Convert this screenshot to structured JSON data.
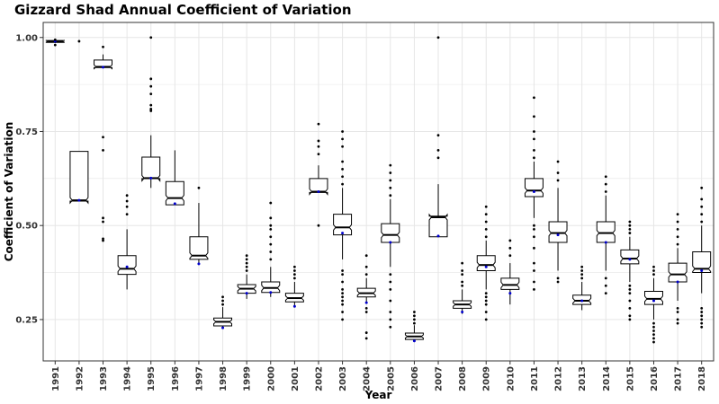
{
  "chart_data": {
    "type": "boxplot",
    "title": "Gizzard Shad Annual Coefficient of Variation",
    "xlabel": "Year",
    "ylabel": "Coefficient of Variation",
    "ylim": [
      0.14,
      1.04
    ],
    "yticks": [
      0.25,
      0.5,
      0.75,
      1.0
    ],
    "ytick_labels": [
      "0.25",
      "0.50",
      "0.75",
      "1.00"
    ],
    "grid": true,
    "colors": {
      "box": "#000000",
      "median": "#000000",
      "mean": "#0000cc",
      "grid": "#e6e6e6",
      "panel_border": "#333333"
    },
    "categories": [
      "1991",
      "1992",
      "1993",
      "1994",
      "1995",
      "1996",
      "1997",
      "1998",
      "1999",
      "2000",
      "2001",
      "2002",
      "2003",
      "2004",
      "2005",
      "2006",
      "2007",
      "2008",
      "2009",
      "2010",
      "2011",
      "2012",
      "2013",
      "2014",
      "2015",
      "2016",
      "2017",
      "2018"
    ],
    "boxes": [
      {
        "year": "1991",
        "q1": 0.987,
        "median": 0.99,
        "q3": 0.992,
        "whislo": 0.985,
        "whishi": 0.993,
        "mean": 0.99,
        "outliers": [
          0.98,
          0.994
        ]
      },
      {
        "year": "1992",
        "q1": 0.565,
        "median": 0.567,
        "q3": 0.697,
        "whislo": 0.565,
        "whishi": 0.697,
        "mean": 0.567,
        "outliers": [
          0.99
        ]
      },
      {
        "year": "1993",
        "q1": 0.92,
        "median": 0.922,
        "q3": 0.94,
        "whislo": 0.92,
        "whishi": 0.955,
        "mean": 0.921,
        "outliers": [
          0.975,
          0.735,
          0.7,
          0.52,
          0.51,
          0.465,
          0.46
        ]
      },
      {
        "year": "1994",
        "q1": 0.37,
        "median": 0.385,
        "q3": 0.42,
        "whislo": 0.33,
        "whishi": 0.49,
        "mean": 0.39,
        "outliers": [
          0.58,
          0.565,
          0.55,
          0.53
        ]
      },
      {
        "year": "1995",
        "q1": 0.625,
        "median": 0.626,
        "q3": 0.682,
        "whislo": 0.6,
        "whishi": 0.74,
        "mean": 0.626,
        "outliers": [
          0.805,
          0.81,
          0.82,
          0.85,
          0.87,
          0.89,
          1.0
        ]
      },
      {
        "year": "1996",
        "q1": 0.555,
        "median": 0.573,
        "q3": 0.617,
        "whislo": 0.555,
        "whishi": 0.7,
        "mean": 0.558,
        "outliers": []
      },
      {
        "year": "1997",
        "q1": 0.41,
        "median": 0.42,
        "q3": 0.47,
        "whislo": 0.395,
        "whishi": 0.56,
        "mean": 0.398,
        "outliers": [
          0.6
        ]
      },
      {
        "year": "1998",
        "q1": 0.233,
        "median": 0.244,
        "q3": 0.254,
        "whislo": 0.225,
        "whishi": 0.283,
        "mean": 0.228,
        "outliers": [
          0.29,
          0.3,
          0.31
        ]
      },
      {
        "year": "1999",
        "q1": 0.32,
        "median": 0.332,
        "q3": 0.343,
        "whislo": 0.305,
        "whishi": 0.37,
        "mean": 0.32,
        "outliers": [
          0.38,
          0.39,
          0.4,
          0.41,
          0.42
        ]
      },
      {
        "year": "2000",
        "q1": 0.322,
        "median": 0.334,
        "q3": 0.35,
        "whislo": 0.31,
        "whishi": 0.39,
        "mean": 0.322,
        "outliers": [
          0.41,
          0.43,
          0.45,
          0.47,
          0.49,
          0.5,
          0.52,
          0.56
        ]
      },
      {
        "year": "2001",
        "q1": 0.297,
        "median": 0.307,
        "q3": 0.32,
        "whislo": 0.285,
        "whishi": 0.35,
        "mean": 0.285,
        "outliers": [
          0.36,
          0.37,
          0.38,
          0.39
        ]
      },
      {
        "year": "2002",
        "q1": 0.588,
        "median": 0.59,
        "q3": 0.625,
        "whislo": 0.588,
        "whishi": 0.66,
        "mean": 0.59,
        "outliers": [
          0.5,
          0.69,
          0.71,
          0.725,
          0.77
        ]
      },
      {
        "year": "2003",
        "q1": 0.475,
        "median": 0.495,
        "q3": 0.53,
        "whislo": 0.41,
        "whishi": 0.6,
        "mean": 0.48,
        "outliers": [
          0.25,
          0.27,
          0.29,
          0.3,
          0.31,
          0.32,
          0.33,
          0.35,
          0.37,
          0.38,
          0.61,
          0.63,
          0.65,
          0.67,
          0.71,
          0.73,
          0.75
        ]
      },
      {
        "year": "2004",
        "q1": 0.31,
        "median": 0.32,
        "q3": 0.333,
        "whislo": 0.295,
        "whishi": 0.36,
        "mean": 0.295,
        "outliers": [
          0.2,
          0.215,
          0.27,
          0.28,
          0.37,
          0.39,
          0.42
        ]
      },
      {
        "year": "2005",
        "q1": 0.455,
        "median": 0.475,
        "q3": 0.505,
        "whislo": 0.39,
        "whishi": 0.57,
        "mean": 0.455,
        "outliers": [
          0.23,
          0.25,
          0.27,
          0.3,
          0.33,
          0.35,
          0.37,
          0.58,
          0.6,
          0.62,
          0.64,
          0.66
        ]
      },
      {
        "year": "2006",
        "q1": 0.197,
        "median": 0.205,
        "q3": 0.214,
        "whislo": 0.19,
        "whishi": 0.235,
        "mean": 0.193,
        "outliers": [
          0.24,
          0.25,
          0.26,
          0.27
        ]
      },
      {
        "year": "2007",
        "q1": 0.47,
        "median": 0.522,
        "q3": 0.525,
        "whislo": 0.47,
        "whishi": 0.61,
        "mean": 0.472,
        "outliers": [
          0.68,
          0.7,
          0.74,
          1.0
        ]
      },
      {
        "year": "2008",
        "q1": 0.28,
        "median": 0.29,
        "q3": 0.3,
        "whislo": 0.265,
        "whishi": 0.33,
        "mean": 0.27,
        "outliers": [
          0.34,
          0.35,
          0.37,
          0.38,
          0.4
        ]
      },
      {
        "year": "2009",
        "q1": 0.38,
        "median": 0.395,
        "q3": 0.42,
        "whislo": 0.33,
        "whishi": 0.46,
        "mean": 0.39,
        "outliers": [
          0.25,
          0.27,
          0.29,
          0.3,
          0.31,
          0.32,
          0.47,
          0.49,
          0.51,
          0.53,
          0.55
        ]
      },
      {
        "year": "2010",
        "q1": 0.33,
        "median": 0.342,
        "q3": 0.36,
        "whislo": 0.29,
        "whishi": 0.4,
        "mean": 0.32,
        "outliers": [
          0.42,
          0.44,
          0.46
        ]
      },
      {
        "year": "2011",
        "q1": 0.577,
        "median": 0.593,
        "q3": 0.625,
        "whislo": 0.52,
        "whishi": 0.67,
        "mean": 0.59,
        "outliers": [
          0.33,
          0.35,
          0.38,
          0.4,
          0.44,
          0.47,
          0.49,
          0.5,
          0.68,
          0.7,
          0.73,
          0.75,
          0.79,
          0.84
        ]
      },
      {
        "year": "2012",
        "q1": 0.455,
        "median": 0.48,
        "q3": 0.51,
        "whislo": 0.38,
        "whishi": 0.6,
        "mean": 0.475,
        "outliers": [
          0.35,
          0.36,
          0.62,
          0.64,
          0.67
        ]
      },
      {
        "year": "2013",
        "q1": 0.29,
        "median": 0.3,
        "q3": 0.315,
        "whislo": 0.275,
        "whishi": 0.35,
        "mean": 0.3,
        "outliers": [
          0.36,
          0.37,
          0.38,
          0.39
        ]
      },
      {
        "year": "2014",
        "q1": 0.455,
        "median": 0.48,
        "q3": 0.51,
        "whislo": 0.38,
        "whishi": 0.58,
        "mean": 0.455,
        "outliers": [
          0.32,
          0.34,
          0.36,
          0.59,
          0.61,
          0.63
        ]
      },
      {
        "year": "2015",
        "q1": 0.398,
        "median": 0.412,
        "q3": 0.435,
        "whislo": 0.35,
        "whishi": 0.47,
        "mean": 0.41,
        "outliers": [
          0.25,
          0.26,
          0.28,
          0.3,
          0.32,
          0.33,
          0.34,
          0.48,
          0.49,
          0.5,
          0.51
        ]
      },
      {
        "year": "2016",
        "q1": 0.29,
        "median": 0.305,
        "q3": 0.325,
        "whislo": 0.25,
        "whishi": 0.36,
        "mean": 0.3,
        "outliers": [
          0.19,
          0.2,
          0.21,
          0.22,
          0.23,
          0.24,
          0.37,
          0.38,
          0.39
        ]
      },
      {
        "year": "2017",
        "q1": 0.35,
        "median": 0.37,
        "q3": 0.4,
        "whislo": 0.3,
        "whishi": 0.44,
        "mean": 0.35,
        "outliers": [
          0.24,
          0.25,
          0.27,
          0.28,
          0.45,
          0.47,
          0.49,
          0.51,
          0.53
        ]
      },
      {
        "year": "2018",
        "q1": 0.375,
        "median": 0.385,
        "q3": 0.43,
        "whislo": 0.32,
        "whishi": 0.5,
        "mean": 0.38,
        "outliers": [
          0.23,
          0.24,
          0.25,
          0.26,
          0.27,
          0.28,
          0.51,
          0.53,
          0.55,
          0.57,
          0.6
        ]
      }
    ]
  }
}
